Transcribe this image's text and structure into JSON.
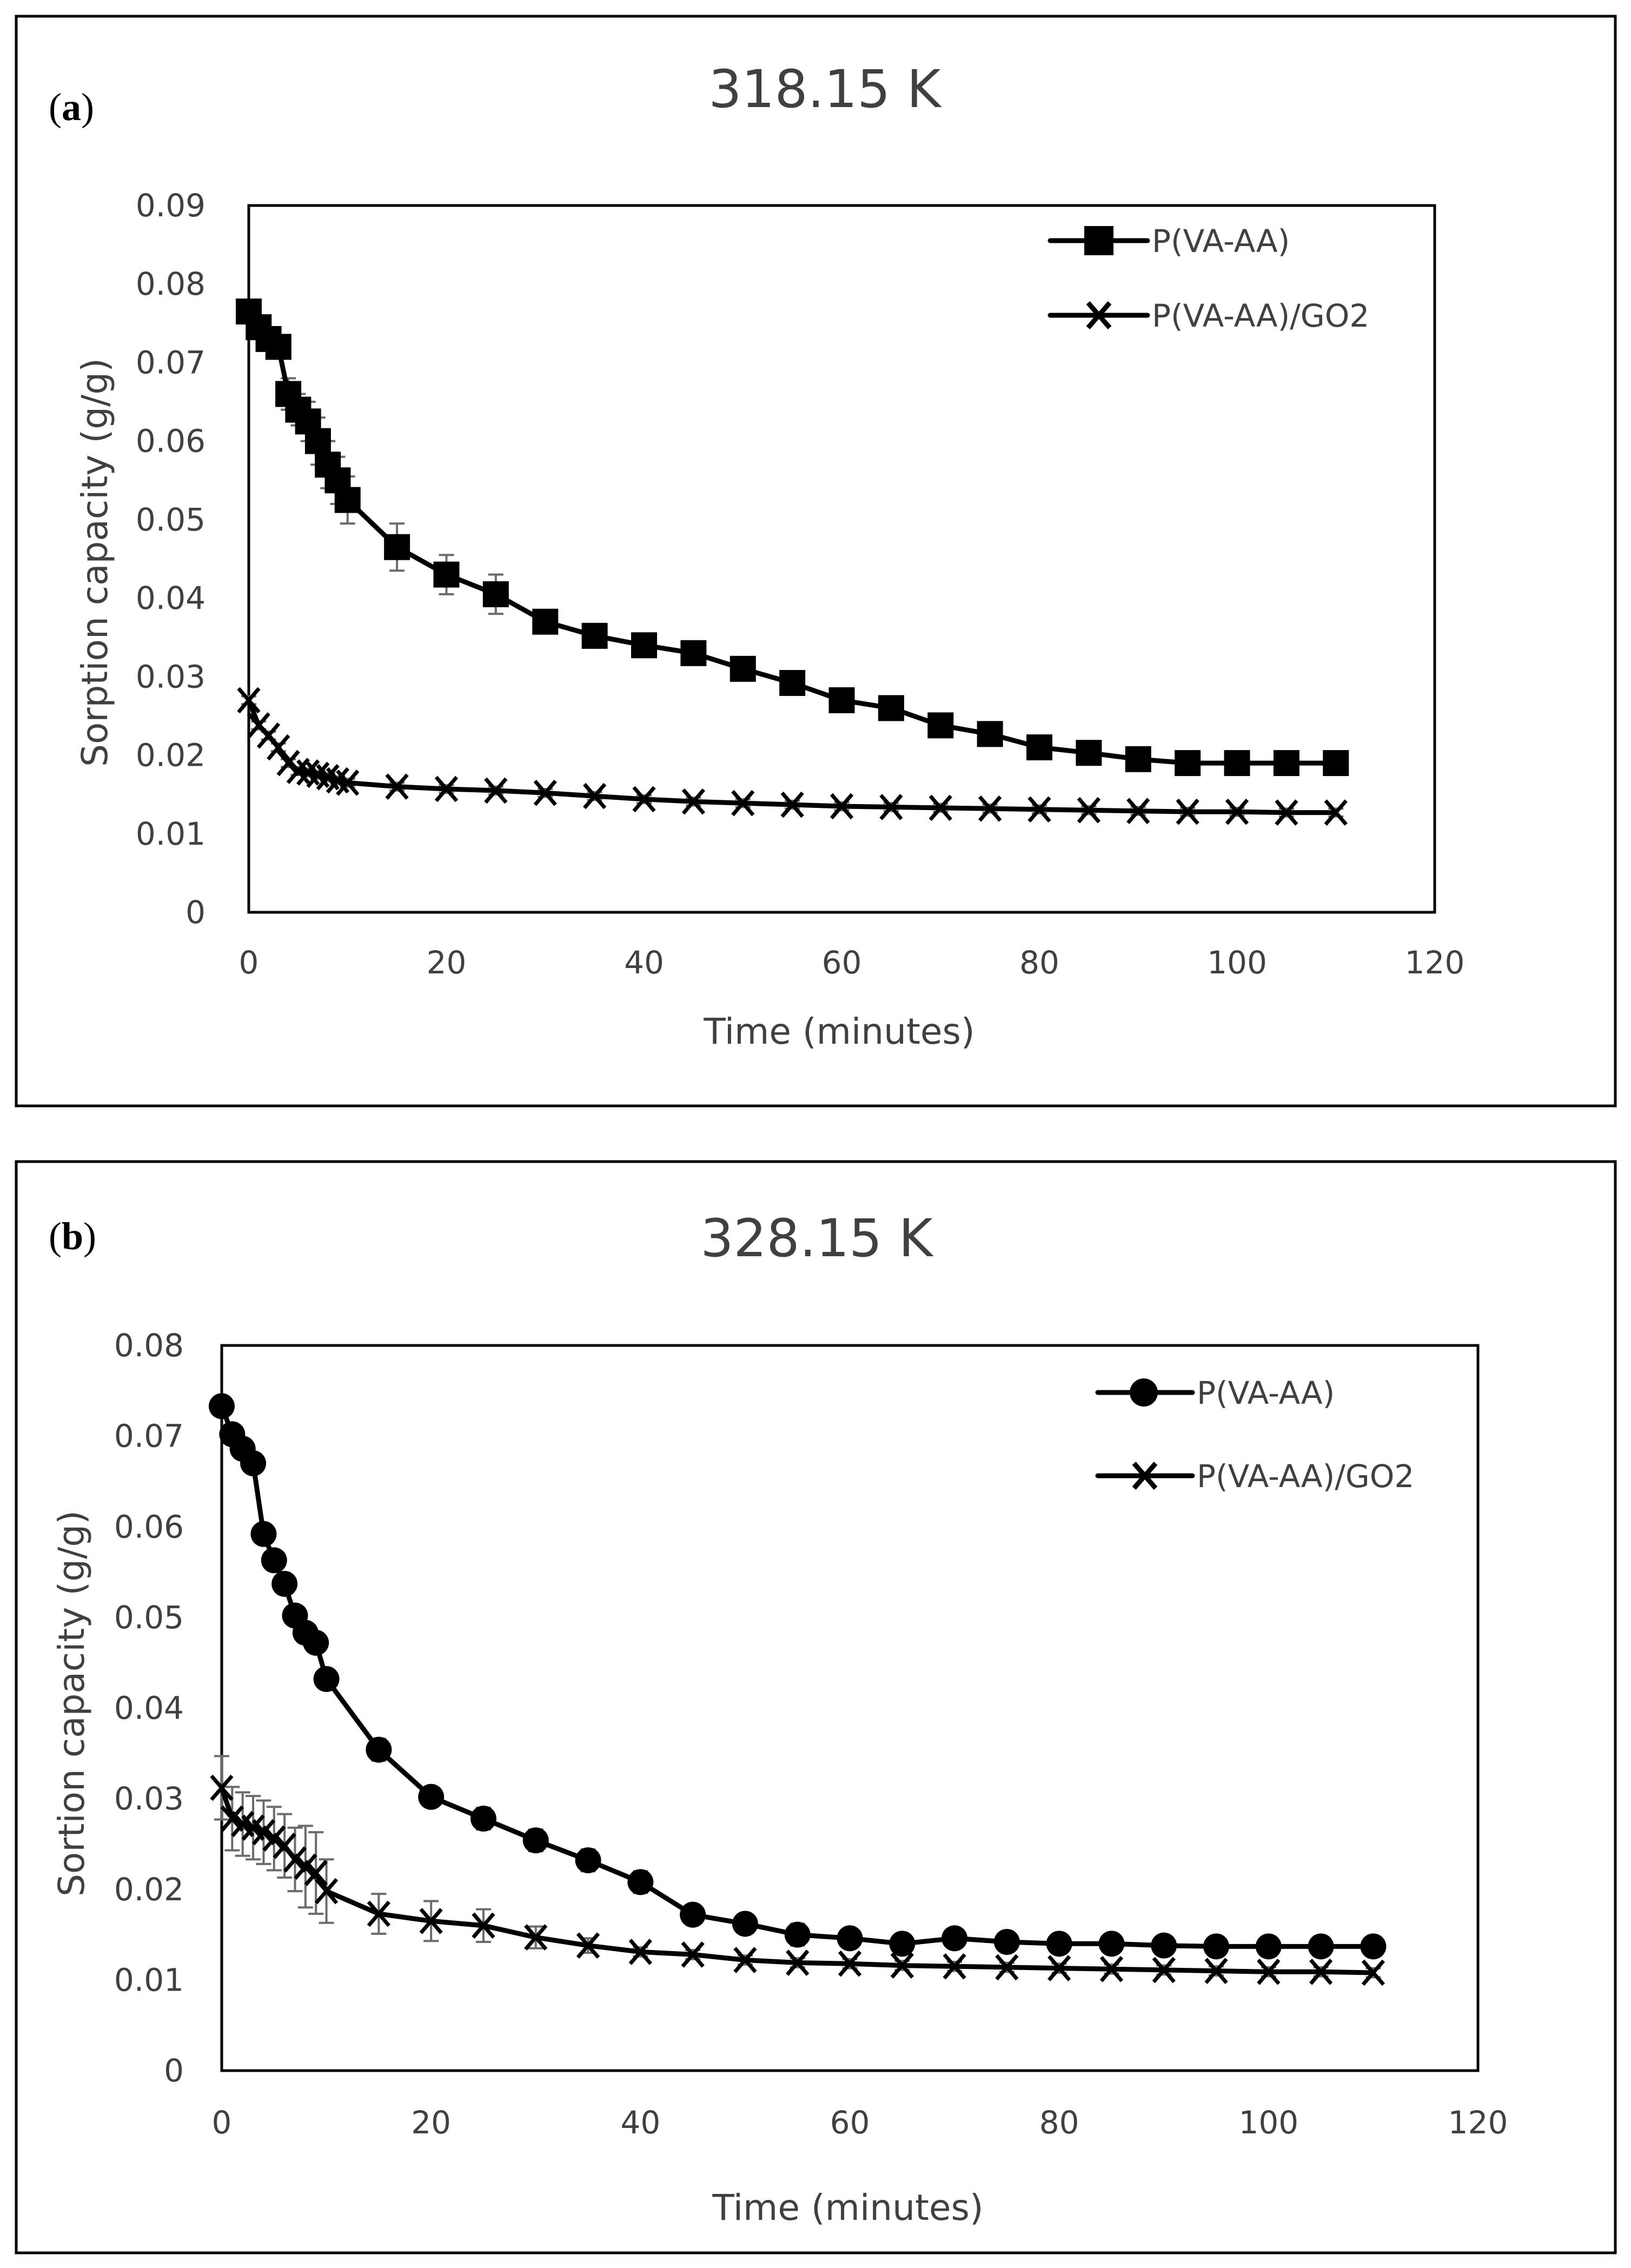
{
  "chart_data": [
    {
      "panel_label": "a",
      "type": "line",
      "title": "318.15 K",
      "xlabel": "Time (minutes)",
      "ylabel": "Sorption capacity  (g/g)",
      "xlim": [
        0,
        120
      ],
      "ylim": [
        0,
        0.09
      ],
      "xticks": [
        0,
        20,
        40,
        60,
        80,
        100,
        120
      ],
      "yticks": [
        0,
        0.01,
        0.02,
        0.03,
        0.04,
        0.05,
        0.06,
        0.07,
        0.08,
        0.09
      ],
      "ytick_labels": [
        "0",
        "0.01",
        "0.02",
        "0.03",
        "0.04",
        "0.05",
        "0.06",
        "0.07",
        "0.08",
        "0.09"
      ],
      "legend_position": "top-right",
      "x": [
        0,
        1,
        2,
        3,
        4,
        5,
        6,
        7,
        8,
        9,
        10,
        15,
        20,
        25,
        30,
        35,
        40,
        45,
        50,
        55,
        60,
        65,
        70,
        75,
        80,
        85,
        90,
        95,
        100,
        105,
        110
      ],
      "series": [
        {
          "name": "P(VA-AA)",
          "marker": "square",
          "values": [
            0.0765,
            0.0745,
            0.073,
            0.072,
            0.066,
            0.064,
            0.0625,
            0.06,
            0.057,
            0.055,
            0.0525,
            0.0465,
            0.043,
            0.0405,
            0.037,
            0.0352,
            0.034,
            0.033,
            0.031,
            0.0292,
            0.027,
            0.026,
            0.0238,
            0.0227,
            0.021,
            0.0203,
            0.0195,
            0.019,
            0.019,
            0.019,
            0.019
          ],
          "errors": [
            0.001,
            0.001,
            0.001,
            0.001,
            0.002,
            0.002,
            0.0025,
            0.003,
            0.003,
            0.003,
            0.003,
            0.003,
            0.0025,
            0.0025,
            0.001,
            0.0015,
            0.001,
            0.0015,
            0.0015,
            0.001,
            0.001,
            0.001,
            0.001,
            0.001,
            0.001,
            0.001,
            0.001,
            0.001,
            0.001,
            0.001,
            0.001
          ]
        },
        {
          "name": "P(VA-AA)/GO2",
          "marker": "x",
          "values": [
            0.027,
            0.0238,
            0.0225,
            0.021,
            0.019,
            0.018,
            0.0178,
            0.0175,
            0.0172,
            0.0168,
            0.0165,
            0.016,
            0.0157,
            0.0155,
            0.0152,
            0.0148,
            0.0144,
            0.0141,
            0.0139,
            0.0137,
            0.0135,
            0.0134,
            0.0133,
            0.0132,
            0.0131,
            0.013,
            0.0129,
            0.0128,
            0.0128,
            0.0127,
            0.0127
          ],
          "errors": [
            0.0005,
            0.0005,
            0.0005,
            0.0005,
            0.0005,
            0.0005,
            0.0005,
            0.0005,
            0.0005,
            0.0005,
            0.0005,
            0.0005,
            0.0005,
            0.0005,
            0.0005,
            0.0005,
            0.0005,
            0.0005,
            0.0005,
            0.0005,
            0.0005,
            0.0005,
            0.0005,
            0.0005,
            0.0005,
            0.0005,
            0.0005,
            0.0005,
            0.0005,
            0.0005,
            0.0005
          ]
        }
      ]
    },
    {
      "panel_label": "b",
      "type": "line",
      "title": "328.15 K",
      "xlabel": "Time (minutes)",
      "ylabel": "Sortion capacity (g/g)",
      "xlim": [
        0,
        120
      ],
      "ylim": [
        0,
        0.08
      ],
      "xticks": [
        0,
        20,
        40,
        60,
        80,
        100,
        120
      ],
      "yticks": [
        0,
        0.01,
        0.02,
        0.03,
        0.04,
        0.05,
        0.06,
        0.07,
        0.08
      ],
      "ytick_labels": [
        "0",
        "0.01",
        "0.02",
        "0.03",
        "0.04",
        "0.05",
        "0.06",
        "0.07",
        "0.08"
      ],
      "legend_position": "top-right",
      "x": [
        0,
        1,
        2,
        3,
        4,
        5,
        6,
        7,
        8,
        9,
        10,
        15,
        20,
        25,
        30,
        35,
        40,
        45,
        50,
        55,
        60,
        65,
        70,
        75,
        80,
        85,
        90,
        95,
        100,
        105,
        110
      ],
      "series": [
        {
          "name": "P(VA-AA)",
          "marker": "circle",
          "values": [
            0.0733,
            0.0702,
            0.0686,
            0.067,
            0.0592,
            0.0563,
            0.0537,
            0.0502,
            0.0483,
            0.0472,
            0.0432,
            0.0354,
            0.0302,
            0.0278,
            0.0254,
            0.0232,
            0.0208,
            0.0172,
            0.0162,
            0.015,
            0.0146,
            0.014,
            0.0146,
            0.0142,
            0.014,
            0.014,
            0.0138,
            0.0137,
            0.0137,
            0.0137,
            0.0137
          ],
          "errors": [
            0.0005,
            0.0005,
            0.0005,
            0.0005,
            0.0005,
            0.0005,
            0.0005,
            0.0005,
            0.0005,
            0.0005,
            0.0005,
            0.0012,
            0.0005,
            0.0012,
            0.0012,
            0.0012,
            0.0012,
            0.0005,
            0.0005,
            0.0012,
            0.0005,
            0.0005,
            0.0005,
            0.0005,
            0.0005,
            0.0005,
            0.0005,
            0.0005,
            0.0005,
            0.0005,
            0.0005
          ]
        },
        {
          "name": "P(VA-AA)/GO2",
          "marker": "x",
          "values": [
            0.0312,
            0.0278,
            0.0272,
            0.0268,
            0.0263,
            0.0256,
            0.0248,
            0.0233,
            0.0225,
            0.0218,
            0.0198,
            0.0173,
            0.0165,
            0.016,
            0.0147,
            0.0138,
            0.0131,
            0.0128,
            0.0122,
            0.0119,
            0.0118,
            0.0116,
            0.0115,
            0.0114,
            0.0113,
            0.0112,
            0.0111,
            0.011,
            0.0109,
            0.0109,
            0.0108
          ],
          "errors": [
            0.0035,
            0.0035,
            0.0035,
            0.0035,
            0.0035,
            0.0035,
            0.0035,
            0.0035,
            0.0045,
            0.0045,
            0.0035,
            0.0022,
            0.0022,
            0.0018,
            0.0012,
            0.0008,
            0.0005,
            0.0005,
            0.0005,
            0.0005,
            0.0005,
            0.0005,
            0.0005,
            0.0005,
            0.0005,
            0.0005,
            0.0005,
            0.0005,
            0.0005,
            0.0005,
            0.0005
          ]
        }
      ]
    }
  ]
}
